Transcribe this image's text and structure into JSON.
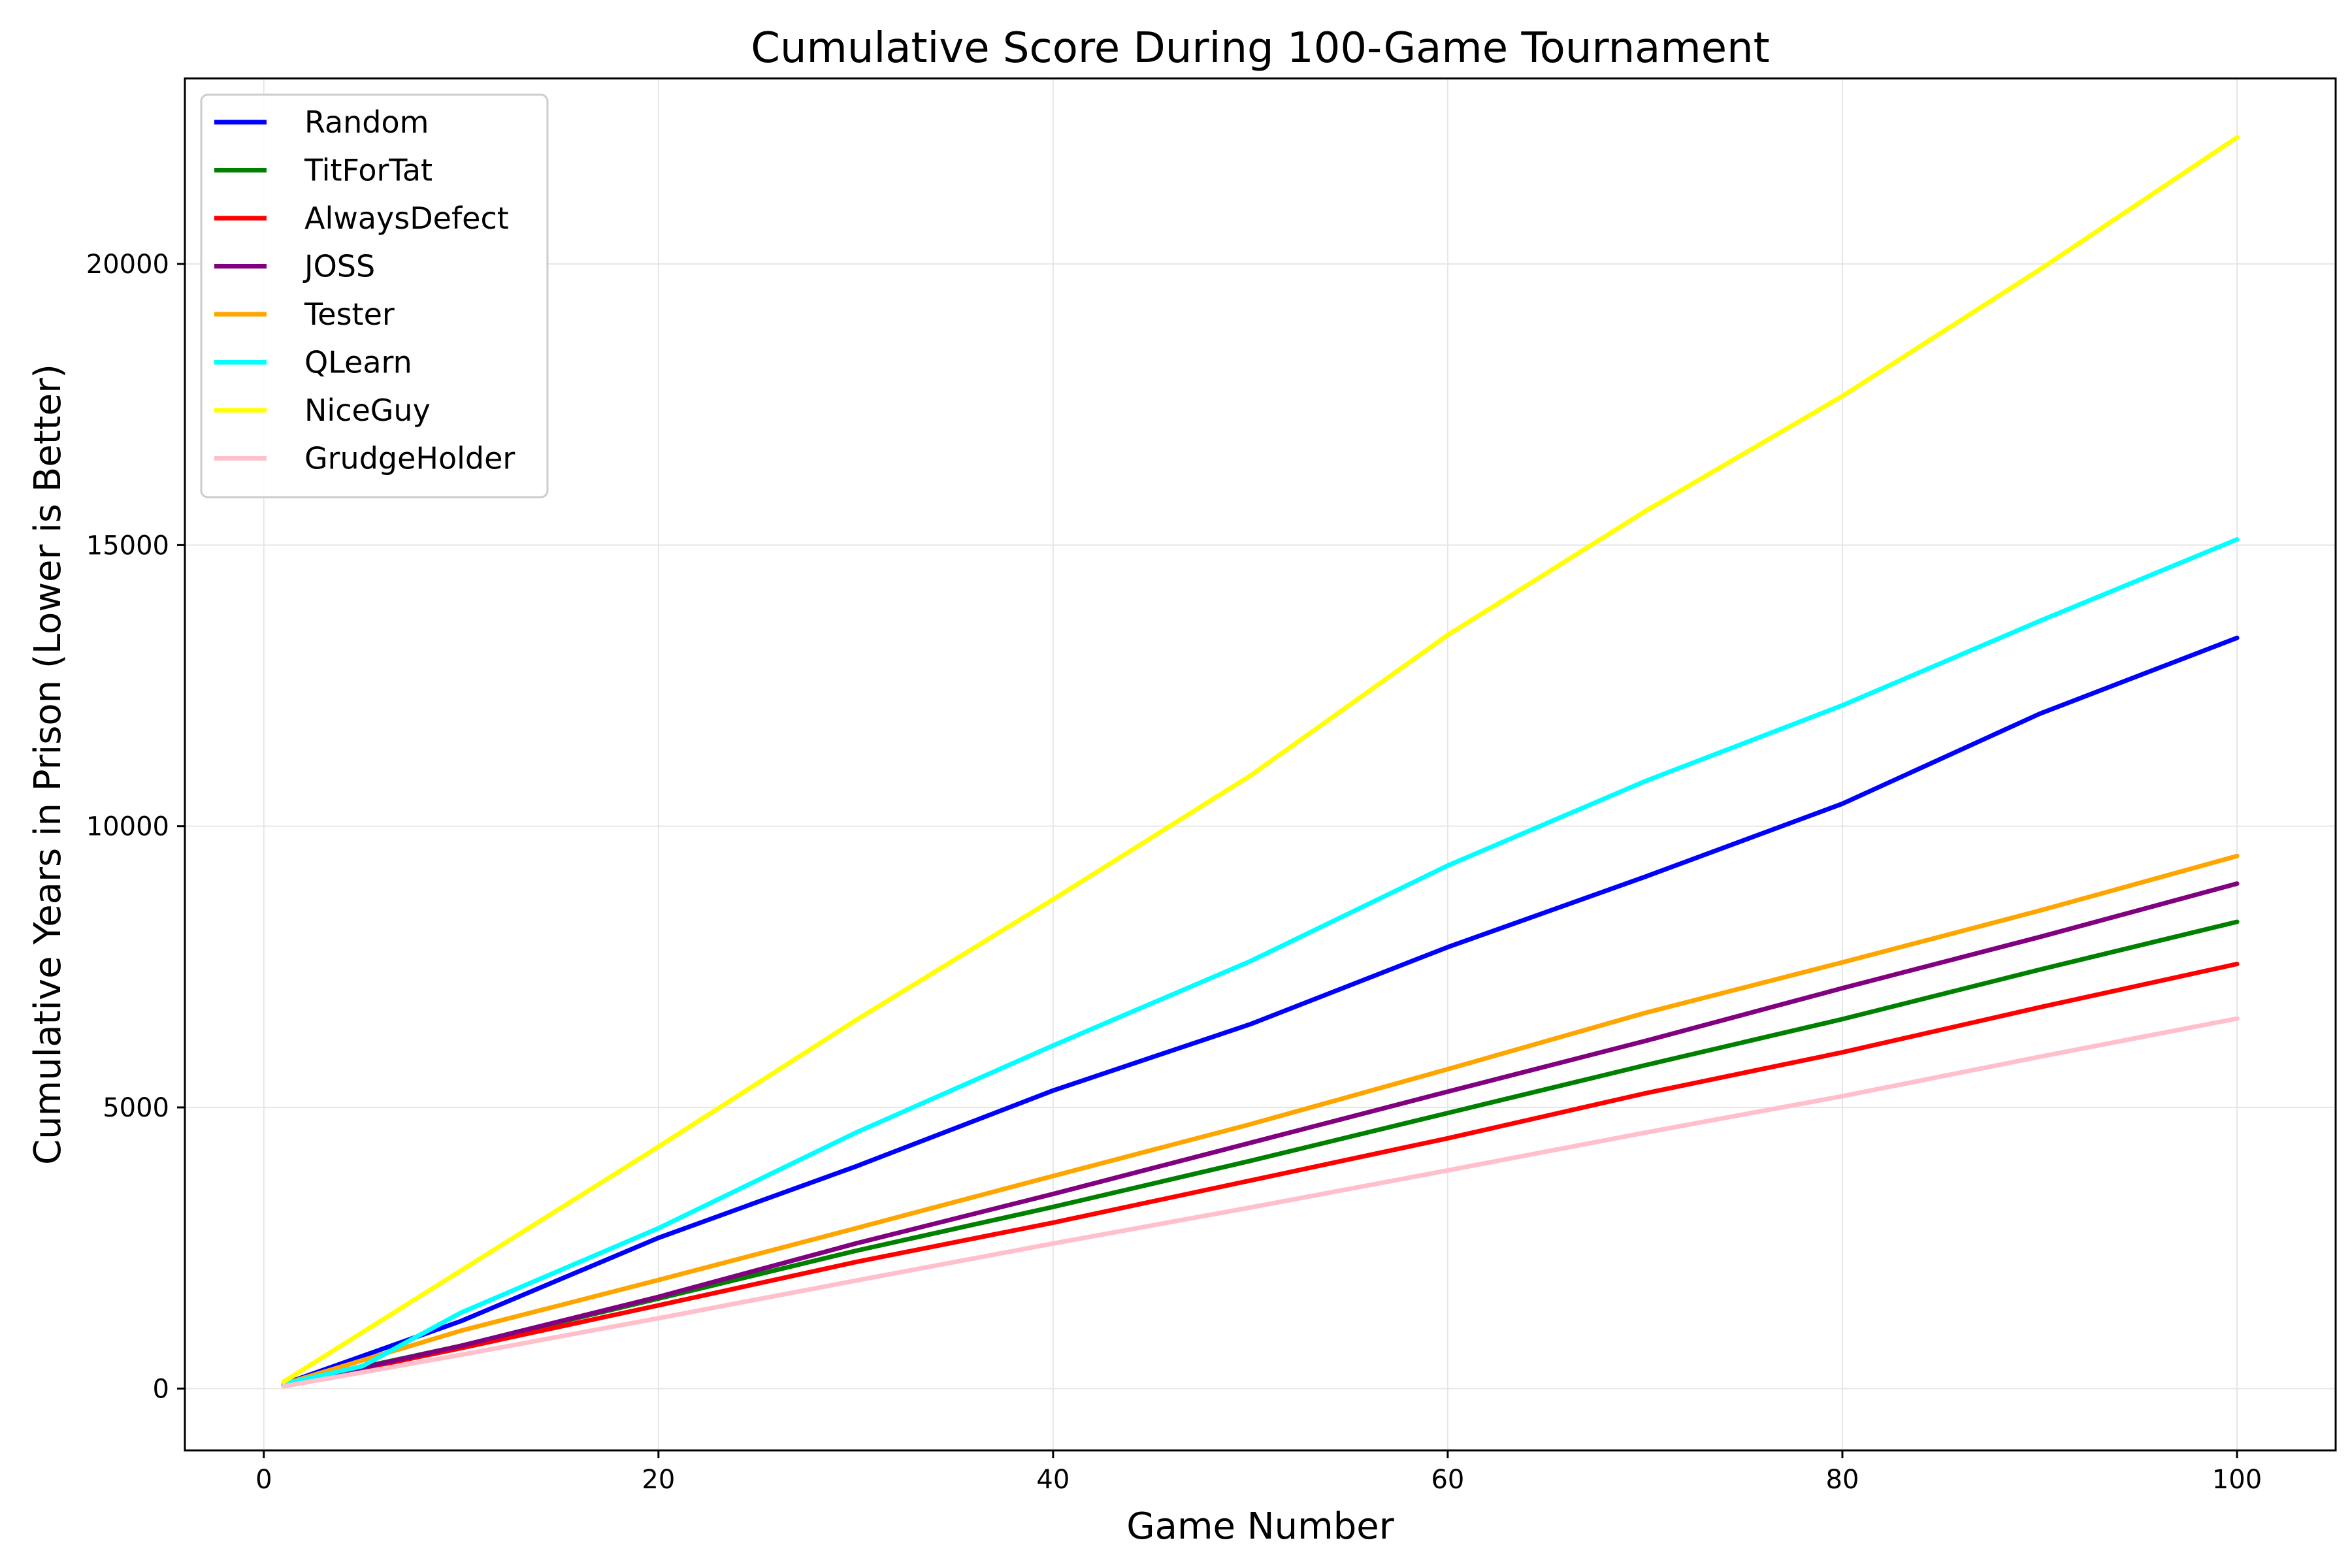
{
  "chart_data": {
    "type": "line",
    "title": "Cumulative Score During 100-Game Tournament",
    "xlabel": "Game Number",
    "ylabel": "Cumulative Years in Prison (Lower is Better)",
    "xlim": [
      -4,
      105
    ],
    "ylim": [
      -1100,
      23300
    ],
    "xticks": [
      0,
      20,
      40,
      60,
      80,
      100
    ],
    "yticks": [
      0,
      5000,
      10000,
      15000,
      20000
    ],
    "grid": true,
    "legend_position": "top-left",
    "series": [
      {
        "name": "Random",
        "color": "#0000ff",
        "points": [
          [
            1,
            80
          ],
          [
            10,
            1200
          ],
          [
            20,
            2680
          ],
          [
            30,
            3950
          ],
          [
            40,
            5300
          ],
          [
            50,
            6480
          ],
          [
            60,
            7850
          ],
          [
            70,
            9100
          ],
          [
            80,
            10400
          ],
          [
            90,
            12000
          ],
          [
            100,
            13350
          ]
        ]
      },
      {
        "name": "TitForTat",
        "color": "#008000",
        "points": [
          [
            1,
            80
          ],
          [
            10,
            760
          ],
          [
            20,
            1600
          ],
          [
            30,
            2450
          ],
          [
            40,
            3230
          ],
          [
            50,
            4050
          ],
          [
            60,
            4900
          ],
          [
            70,
            5750
          ],
          [
            80,
            6570
          ],
          [
            90,
            7450
          ],
          [
            100,
            8300
          ]
        ]
      },
      {
        "name": "AlwaysDefect",
        "color": "#ff0000",
        "points": [
          [
            1,
            60
          ],
          [
            10,
            720
          ],
          [
            20,
            1480
          ],
          [
            30,
            2250
          ],
          [
            40,
            2950
          ],
          [
            50,
            3700
          ],
          [
            60,
            4450
          ],
          [
            70,
            5250
          ],
          [
            80,
            5980
          ],
          [
            90,
            6780
          ],
          [
            100,
            7550
          ]
        ]
      },
      {
        "name": "JOSS",
        "color": "#800080",
        "points": [
          [
            1,
            60
          ],
          [
            10,
            760
          ],
          [
            20,
            1630
          ],
          [
            30,
            2580
          ],
          [
            40,
            3460
          ],
          [
            50,
            4370
          ],
          [
            60,
            5280
          ],
          [
            70,
            6180
          ],
          [
            80,
            7120
          ],
          [
            90,
            8030
          ],
          [
            100,
            8980
          ]
        ]
      },
      {
        "name": "Tester",
        "color": "#ffa500",
        "points": [
          [
            1,
            80
          ],
          [
            10,
            1030
          ],
          [
            20,
            1930
          ],
          [
            30,
            2850
          ],
          [
            40,
            3780
          ],
          [
            50,
            4700
          ],
          [
            60,
            5680
          ],
          [
            70,
            6680
          ],
          [
            80,
            7580
          ],
          [
            90,
            8500
          ],
          [
            100,
            9470
          ]
        ]
      },
      {
        "name": "QLearn",
        "color": "#00ffff",
        "points": [
          [
            1,
            80
          ],
          [
            5,
            400
          ],
          [
            10,
            1350
          ],
          [
            20,
            2850
          ],
          [
            30,
            4550
          ],
          [
            40,
            6100
          ],
          [
            50,
            7600
          ],
          [
            60,
            9300
          ],
          [
            70,
            10800
          ],
          [
            80,
            12150
          ],
          [
            90,
            13650
          ],
          [
            100,
            15100
          ]
        ]
      },
      {
        "name": "NiceGuy",
        "color": "#ffff00",
        "points": [
          [
            1,
            120
          ],
          [
            10,
            2100
          ],
          [
            20,
            4300
          ],
          [
            30,
            6550
          ],
          [
            40,
            8700
          ],
          [
            50,
            10900
          ],
          [
            60,
            13400
          ],
          [
            70,
            15600
          ],
          [
            80,
            17650
          ],
          [
            90,
            19900
          ],
          [
            100,
            22250
          ]
        ]
      },
      {
        "name": "GrudgeHolder",
        "color": "#ffc0cb",
        "points": [
          [
            1,
            40
          ],
          [
            10,
            600
          ],
          [
            20,
            1250
          ],
          [
            30,
            1920
          ],
          [
            40,
            2580
          ],
          [
            50,
            3220
          ],
          [
            60,
            3880
          ],
          [
            70,
            4550
          ],
          [
            80,
            5200
          ],
          [
            90,
            5900
          ],
          [
            100,
            6580
          ]
        ]
      }
    ]
  }
}
